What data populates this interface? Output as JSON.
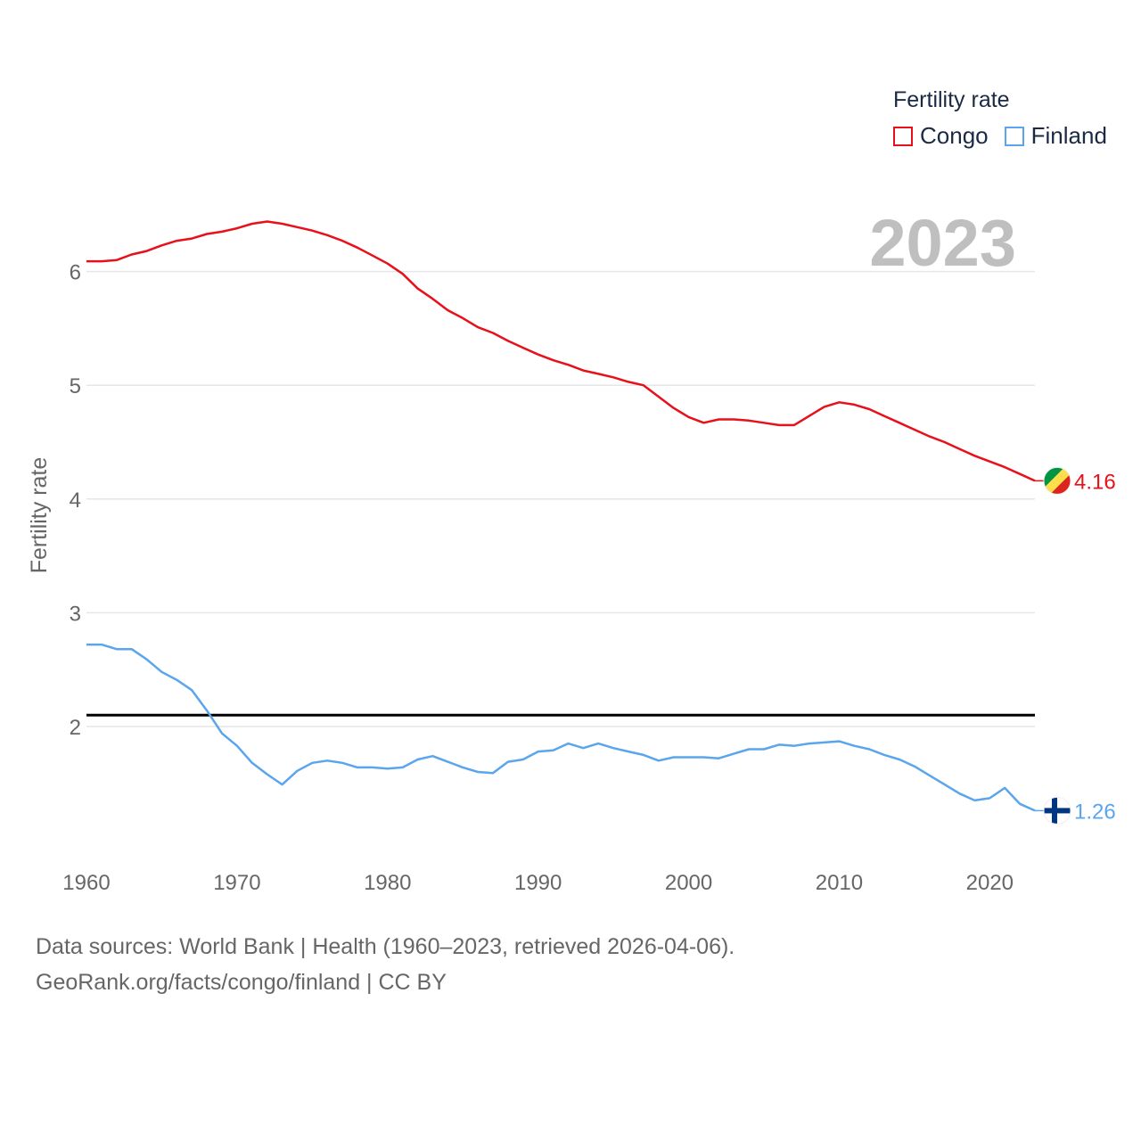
{
  "legend": {
    "title": "Fertility rate",
    "items": [
      {
        "name": "Congo",
        "color": "#e8101a"
      },
      {
        "name": "Finland",
        "color": "#5aa5ec"
      }
    ]
  },
  "year_label": "2023",
  "sources": {
    "line1": "Data sources: World Bank | Health (1960–2023, retrieved 2026-04-06).",
    "line2": "GeoRank.org/facts/congo/finland | CC BY"
  },
  "chart_data": {
    "type": "line",
    "title": "Fertility rate",
    "xlabel": "",
    "ylabel": "Fertility rate",
    "xlim": [
      1960,
      2023
    ],
    "ylim": [
      1,
      6.6
    ],
    "x_ticks": [
      "1960",
      "1970",
      "1980",
      "1990",
      "2000",
      "2010",
      "2020"
    ],
    "y_ticks": [
      "2",
      "3",
      "4",
      "5",
      "6"
    ],
    "reference_line": {
      "value": 2.1,
      "color": "#000000"
    },
    "x": [
      1960,
      1961,
      1962,
      1963,
      1964,
      1965,
      1966,
      1967,
      1968,
      1969,
      1970,
      1971,
      1972,
      1973,
      1974,
      1975,
      1976,
      1977,
      1978,
      1979,
      1980,
      1981,
      1982,
      1983,
      1984,
      1985,
      1986,
      1987,
      1988,
      1989,
      1990,
      1991,
      1992,
      1993,
      1994,
      1995,
      1996,
      1997,
      1998,
      1999,
      2000,
      2001,
      2002,
      2003,
      2004,
      2005,
      2006,
      2007,
      2008,
      2009,
      2010,
      2011,
      2012,
      2013,
      2014,
      2015,
      2016,
      2017,
      2018,
      2019,
      2020,
      2021,
      2022,
      2023
    ],
    "series": [
      {
        "name": "Congo",
        "color": "#e8101a",
        "end_label": "4.16",
        "flag": "congo-flag-icon",
        "values": [
          6.09,
          6.09,
          6.1,
          6.15,
          6.18,
          6.23,
          6.27,
          6.29,
          6.33,
          6.35,
          6.38,
          6.42,
          6.44,
          6.42,
          6.39,
          6.36,
          6.32,
          6.27,
          6.21,
          6.14,
          6.07,
          5.98,
          5.85,
          5.76,
          5.66,
          5.59,
          5.51,
          5.46,
          5.39,
          5.33,
          5.27,
          5.22,
          5.18,
          5.13,
          5.1,
          5.07,
          5.03,
          5.0,
          4.9,
          4.8,
          4.72,
          4.67,
          4.7,
          4.7,
          4.69,
          4.67,
          4.65,
          4.65,
          4.73,
          4.81,
          4.85,
          4.83,
          4.79,
          4.73,
          4.67,
          4.61,
          4.55,
          4.5,
          4.44,
          4.38,
          4.33,
          4.28,
          4.22,
          4.16
        ]
      },
      {
        "name": "Finland",
        "color": "#5aa5ec",
        "end_label": "1.26",
        "flag": "finland-flag-icon",
        "values": [
          2.72,
          2.72,
          2.68,
          2.68,
          2.59,
          2.48,
          2.41,
          2.32,
          2.14,
          1.94,
          1.83,
          1.68,
          1.58,
          1.49,
          1.61,
          1.68,
          1.7,
          1.68,
          1.64,
          1.64,
          1.63,
          1.64,
          1.71,
          1.74,
          1.69,
          1.64,
          1.6,
          1.59,
          1.69,
          1.71,
          1.78,
          1.79,
          1.85,
          1.81,
          1.85,
          1.81,
          1.78,
          1.75,
          1.7,
          1.73,
          1.73,
          1.73,
          1.72,
          1.76,
          1.8,
          1.8,
          1.84,
          1.83,
          1.85,
          1.86,
          1.87,
          1.83,
          1.8,
          1.75,
          1.71,
          1.65,
          1.57,
          1.49,
          1.41,
          1.35,
          1.37,
          1.46,
          1.32,
          1.26
        ]
      }
    ]
  }
}
